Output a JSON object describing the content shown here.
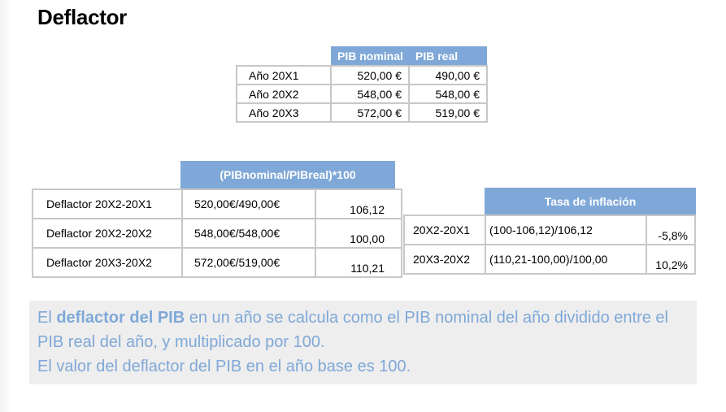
{
  "title": "Deflactor",
  "table1": {
    "headers": [
      "PIB nominal",
      "PIB real"
    ],
    "rows": [
      {
        "label": "Año 20X1",
        "nominal": "520,00 €",
        "real": "490,00 €"
      },
      {
        "label": "Año 20X2",
        "nominal": "548,00 €",
        "real": "548,00 €"
      },
      {
        "label": "Año 20X3",
        "nominal": "572,00 €",
        "real": "519,00 €"
      }
    ]
  },
  "table2": {
    "header": "(PIBnominal/PIBreal)*100",
    "rows": [
      {
        "label": "Deflactor 20X2-20X1",
        "fraction": "520,00€/490,00€",
        "value": "106,12"
      },
      {
        "label": "Deflactor 20X2-20X2",
        "fraction": "548,00€/548,00€",
        "value": "100,00"
      },
      {
        "label": "Deflactor 20X3-20X2",
        "fraction": "572,00€/519,00€",
        "value": "110,21"
      }
    ]
  },
  "table3": {
    "header": "Tasa de inflación",
    "rows": [
      {
        "label": "20X2-20X1",
        "formula": "(100-106,12)/106,12",
        "value": "-5,8%"
      },
      {
        "label": "20X3-20X2",
        "formula": "(110,21-100,00)/100,00",
        "value": "10,2%"
      }
    ]
  },
  "note": {
    "part1": "El ",
    "bold": "deflactor del PIB",
    "part2": " en un año se calcula como el PIB nominal del año dividido entre el PIB real del año, y multiplicado por 100.",
    "line2": "El valor del deflactor del PIB en el año base es 100."
  },
  "colors": {
    "accent": "#7fa8d8",
    "note_bg": "#eeeeee",
    "border": "#c8c8c8"
  }
}
